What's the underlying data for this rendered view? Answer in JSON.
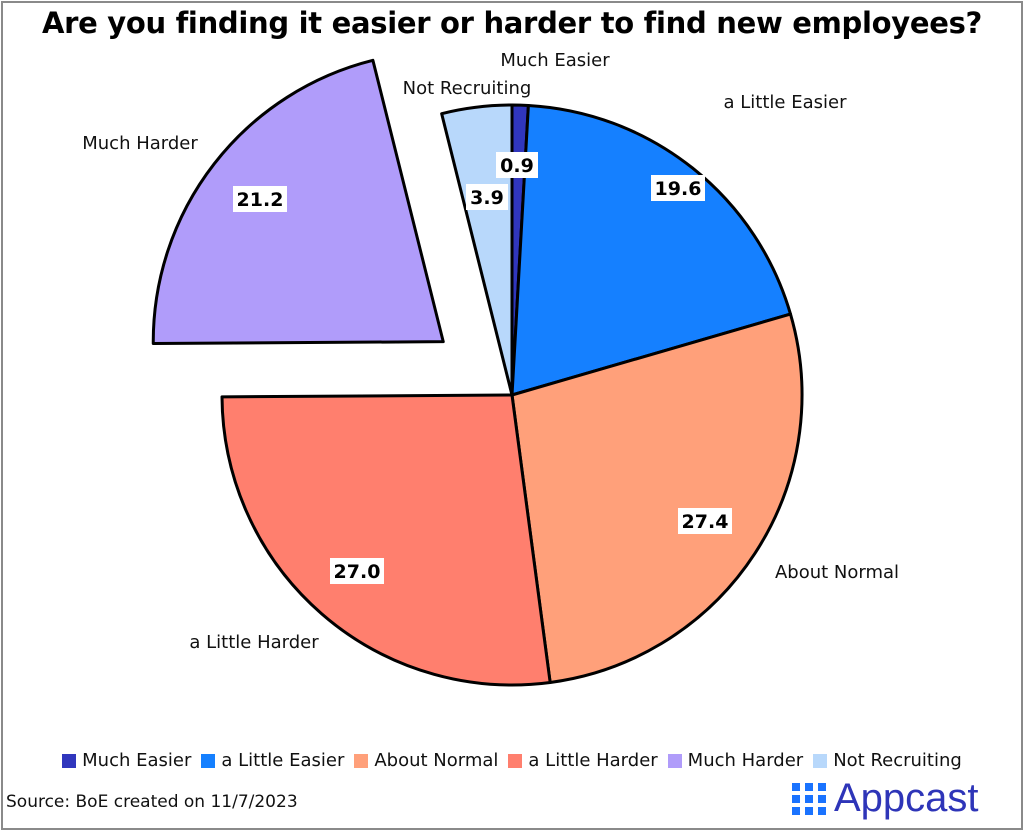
{
  "chart_data": {
    "type": "pie",
    "title": "Are you finding it easier or harder to find new employees?",
    "start_angle": "12 o'clock",
    "direction": "clockwise",
    "exploded": [
      "Much Harder"
    ],
    "legend_position": "bottom",
    "slices": [
      {
        "label": "Much Easier",
        "value": 0.9,
        "display": "0.9",
        "color": "#3036bd"
      },
      {
        "label": "a Little Easier",
        "value": 19.6,
        "display": "19.6",
        "color": "#1580ff"
      },
      {
        "label": "About Normal",
        "value": 27.4,
        "display": "27.4",
        "color": "#ffa07a"
      },
      {
        "label": "a Little Harder",
        "value": 27.0,
        "display": "27.0",
        "color": "#ff7f6e"
      },
      {
        "label": "Much Harder",
        "value": 21.2,
        "display": "21.2",
        "color": "#b09cfa"
      },
      {
        "label": "Not Recruiting",
        "value": 3.9,
        "display": "3.9",
        "color": "#b8d8fb"
      }
    ]
  },
  "source": "Source: BoE created on 11/7/2023",
  "logo": {
    "text": "Appcast"
  }
}
